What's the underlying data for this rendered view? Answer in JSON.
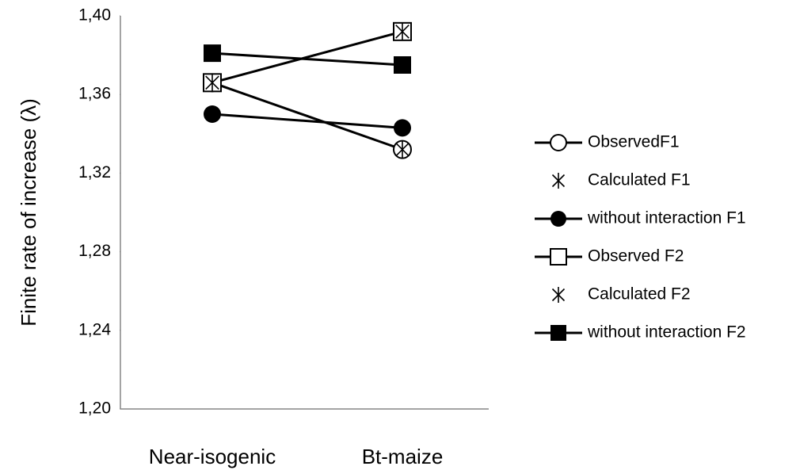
{
  "chart_data": {
    "type": "line",
    "y_label": "Finite rate of increase (λ)",
    "categories": [
      "Near-isogenic",
      "Bt-maize"
    ],
    "ylim": [
      1.2,
      1.4
    ],
    "yticks": [
      {
        "value": 1.2,
        "label": "1,20"
      },
      {
        "value": 1.24,
        "label": "1,24"
      },
      {
        "value": 1.28,
        "label": "1,28"
      },
      {
        "value": 1.32,
        "label": "1,32"
      },
      {
        "value": 1.36,
        "label": "1,36"
      },
      {
        "value": 1.4,
        "label": "1,40"
      }
    ],
    "grid": false,
    "legend": "right",
    "series": [
      {
        "name": "ObservedF1",
        "color": "#000000",
        "marker": "circle-open",
        "line": true,
        "values": [
          1.366,
          1.332
        ]
      },
      {
        "name": "Calculated F1",
        "color": "#000000",
        "marker": "star",
        "line": false,
        "values": [
          1.366,
          1.332
        ]
      },
      {
        "name": "without interaction F1",
        "color": "#000000",
        "marker": "circle",
        "line": true,
        "values": [
          1.35,
          1.343
        ]
      },
      {
        "name": "Observed F2",
        "color": "#000000",
        "marker": "square-open",
        "line": true,
        "values": [
          1.366,
          1.392
        ]
      },
      {
        "name": "Calculated F2",
        "color": "#000000",
        "marker": "star",
        "line": false,
        "values": [
          1.366,
          1.392
        ]
      },
      {
        "name": "without interaction F2",
        "color": "#000000",
        "marker": "square",
        "line": true,
        "values": [
          1.381,
          1.375
        ]
      }
    ]
  }
}
